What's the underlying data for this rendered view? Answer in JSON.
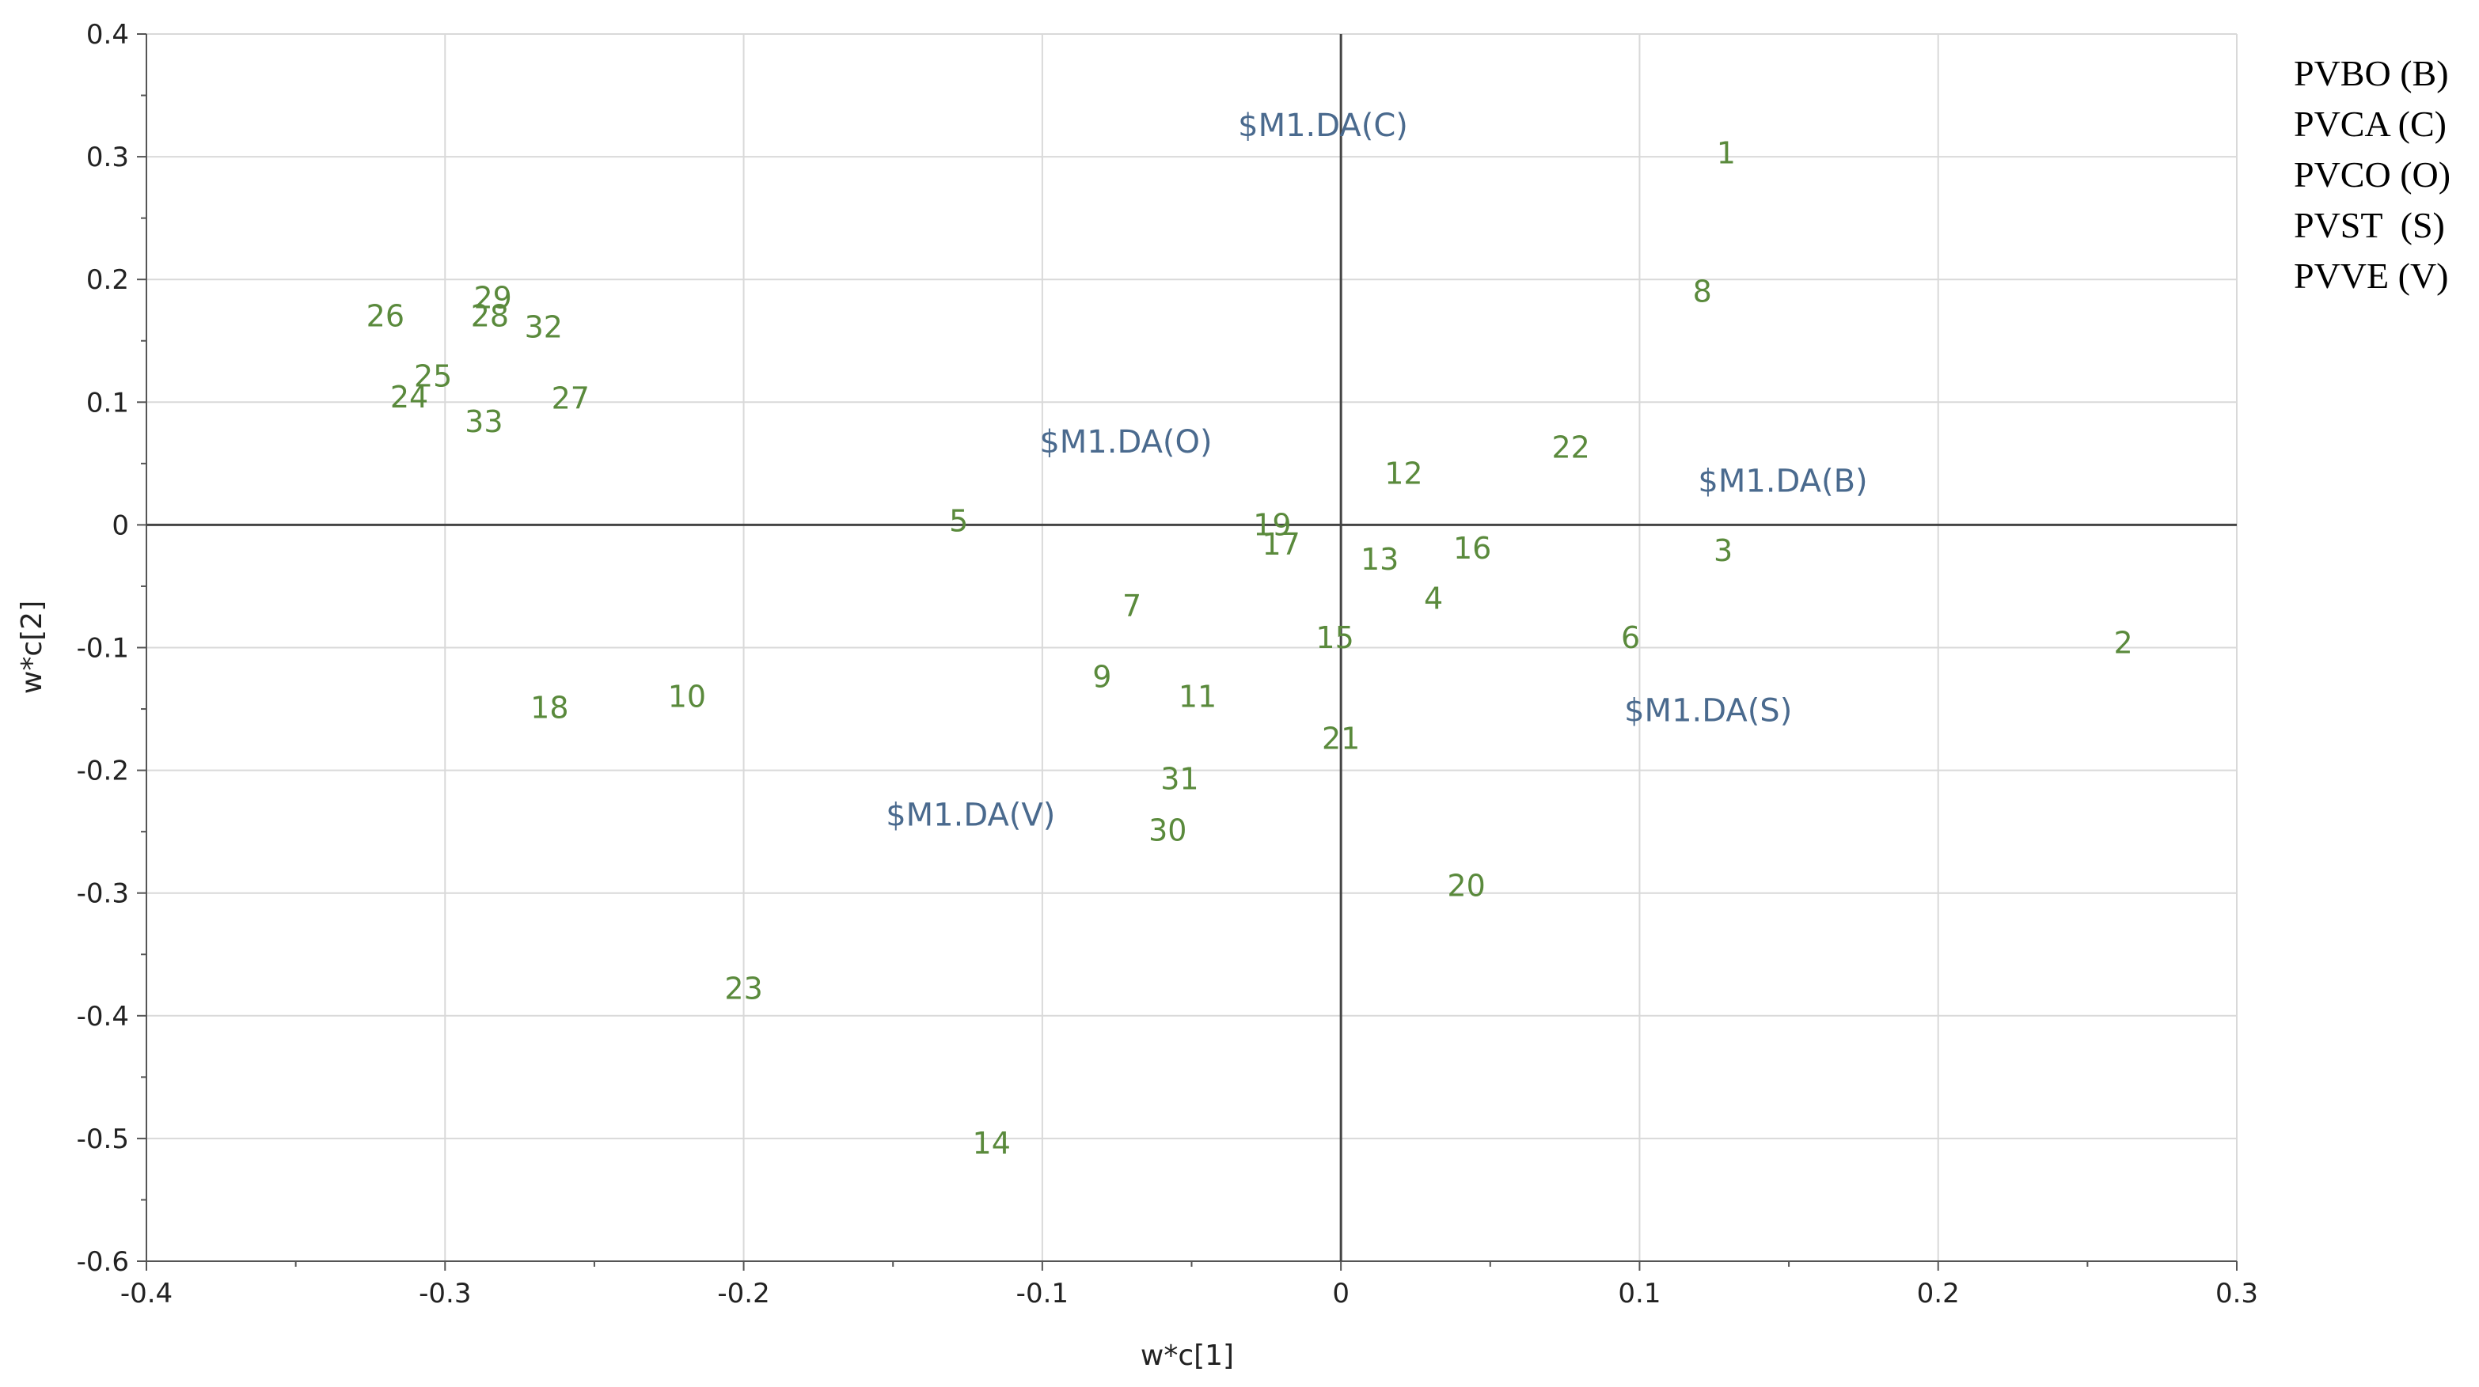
{
  "chart_data": {
    "type": "scatter",
    "title": "",
    "xlabel": "w*c[1]",
    "ylabel": "w*c[2]",
    "xlim": [
      -0.4,
      0.3
    ],
    "ylim": [
      -0.6,
      0.4
    ],
    "x_ticks": [
      "-0.4",
      "-0.3",
      "-0.2",
      "-0.1",
      "0",
      "0.1",
      "0.2",
      "0.3"
    ],
    "y_ticks": [
      "0.4",
      "0.3",
      "0.2",
      "0.1",
      "0",
      "-0.1",
      "-0.2",
      "-0.3",
      "-0.4",
      "-0.5",
      "-0.6"
    ],
    "grid": true,
    "legend_position": "top-right",
    "legend": [
      "PVBO (B)",
      "PVCA (C)",
      "PVCO (O)",
      "PVST  (S)",
      "PVVE (V)"
    ],
    "colors": {
      "points": "#5a8a3c",
      "classes": "#4a6a8e",
      "axes": "#555555",
      "grid": "#d9d9d9"
    },
    "points": [
      {
        "label": "1",
        "x": 0.129,
        "y": 0.303
      },
      {
        "label": "2",
        "x": 0.262,
        "y": -0.096
      },
      {
        "label": "3",
        "x": 0.128,
        "y": -0.021
      },
      {
        "label": "4",
        "x": 0.031,
        "y": -0.06
      },
      {
        "label": "5",
        "x": -0.128,
        "y": 0.003
      },
      {
        "label": "6",
        "x": 0.097,
        "y": -0.092
      },
      {
        "label": "7",
        "x": -0.07,
        "y": -0.066
      },
      {
        "label": "8",
        "x": 0.121,
        "y": 0.19
      },
      {
        "label": "9",
        "x": -0.08,
        "y": -0.124
      },
      {
        "label": "10",
        "x": -0.219,
        "y": -0.14
      },
      {
        "label": "11",
        "x": -0.048,
        "y": -0.14
      },
      {
        "label": "12",
        "x": 0.021,
        "y": 0.042
      },
      {
        "label": "13",
        "x": 0.013,
        "y": -0.028
      },
      {
        "label": "14",
        "x": -0.117,
        "y": -0.504
      },
      {
        "label": "15",
        "x": -0.002,
        "y": -0.092
      },
      {
        "label": "16",
        "x": 0.044,
        "y": -0.019
      },
      {
        "label": "17",
        "x": -0.02,
        "y": -0.016
      },
      {
        "label": "18",
        "x": -0.265,
        "y": -0.149
      },
      {
        "label": "19",
        "x": -0.023,
        "y": 0.0
      },
      {
        "label": "20",
        "x": 0.042,
        "y": -0.294
      },
      {
        "label": "21",
        "x": 0.0,
        "y": -0.174
      },
      {
        "label": "22",
        "x": 0.077,
        "y": 0.063
      },
      {
        "label": "23",
        "x": -0.2,
        "y": -0.378
      },
      {
        "label": "24",
        "x": -0.312,
        "y": 0.104
      },
      {
        "label": "25",
        "x": -0.304,
        "y": 0.121
      },
      {
        "label": "26",
        "x": -0.32,
        "y": 0.17
      },
      {
        "label": "27",
        "x": -0.258,
        "y": 0.103
      },
      {
        "label": "28",
        "x": -0.285,
        "y": 0.17
      },
      {
        "label": "29",
        "x": -0.284,
        "y": 0.185
      },
      {
        "label": "30",
        "x": -0.058,
        "y": -0.249
      },
      {
        "label": "31",
        "x": -0.054,
        "y": -0.207
      },
      {
        "label": "32",
        "x": -0.267,
        "y": 0.161
      },
      {
        "label": "33",
        "x": -0.287,
        "y": 0.084
      }
    ],
    "classes": [
      {
        "label": "$M1.DA(C)",
        "x": -0.006,
        "y": 0.326
      },
      {
        "label": "$M1.DA(O)",
        "x": -0.072,
        "y": 0.068
      },
      {
        "label": "$M1.DA(B)",
        "x": 0.148,
        "y": 0.036
      },
      {
        "label": "$M1.DA(S)",
        "x": 0.123,
        "y": -0.151
      },
      {
        "label": "$M1.DA(V)",
        "x": -0.124,
        "y": -0.236
      }
    ]
  }
}
